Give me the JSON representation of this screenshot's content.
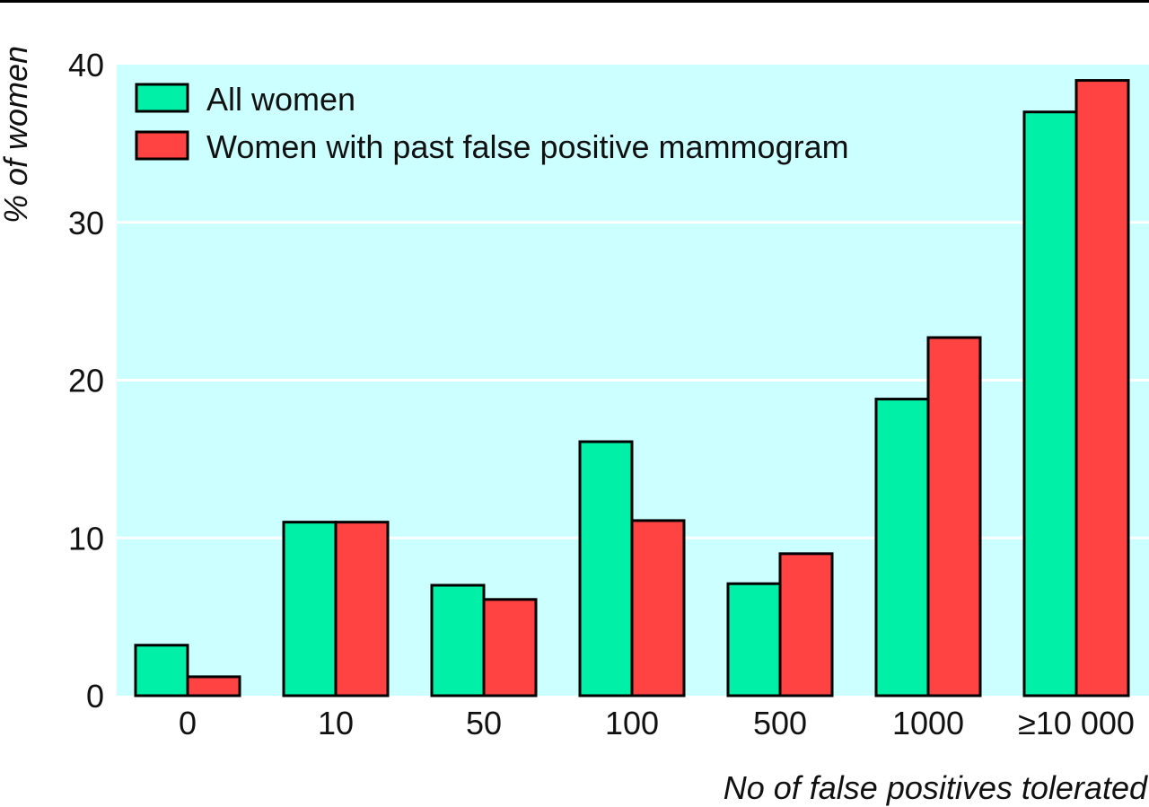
{
  "chart_data": {
    "type": "bar",
    "title": "",
    "xlabel": "No of false positives tolerated",
    "ylabel": "% of women",
    "categories": [
      "0",
      "10",
      "50",
      "100",
      "500",
      "1000",
      "≥10 000"
    ],
    "series": [
      {
        "name": "All women",
        "color": "#00f0a8",
        "values": [
          3.2,
          11.0,
          7.0,
          16.1,
          7.1,
          18.8,
          37.0
        ]
      },
      {
        "name": "Women with past false positive mammogram",
        "color": "#ff4242",
        "values": [
          1.2,
          11.0,
          6.1,
          11.1,
          9.0,
          22.7,
          39.0
        ]
      }
    ],
    "ylim": [
      0,
      40
    ],
    "yticks": [
      0,
      10,
      20,
      30,
      40
    ],
    "grid": true,
    "legend_position": "top-left",
    "plot_background": "#ccffff"
  }
}
